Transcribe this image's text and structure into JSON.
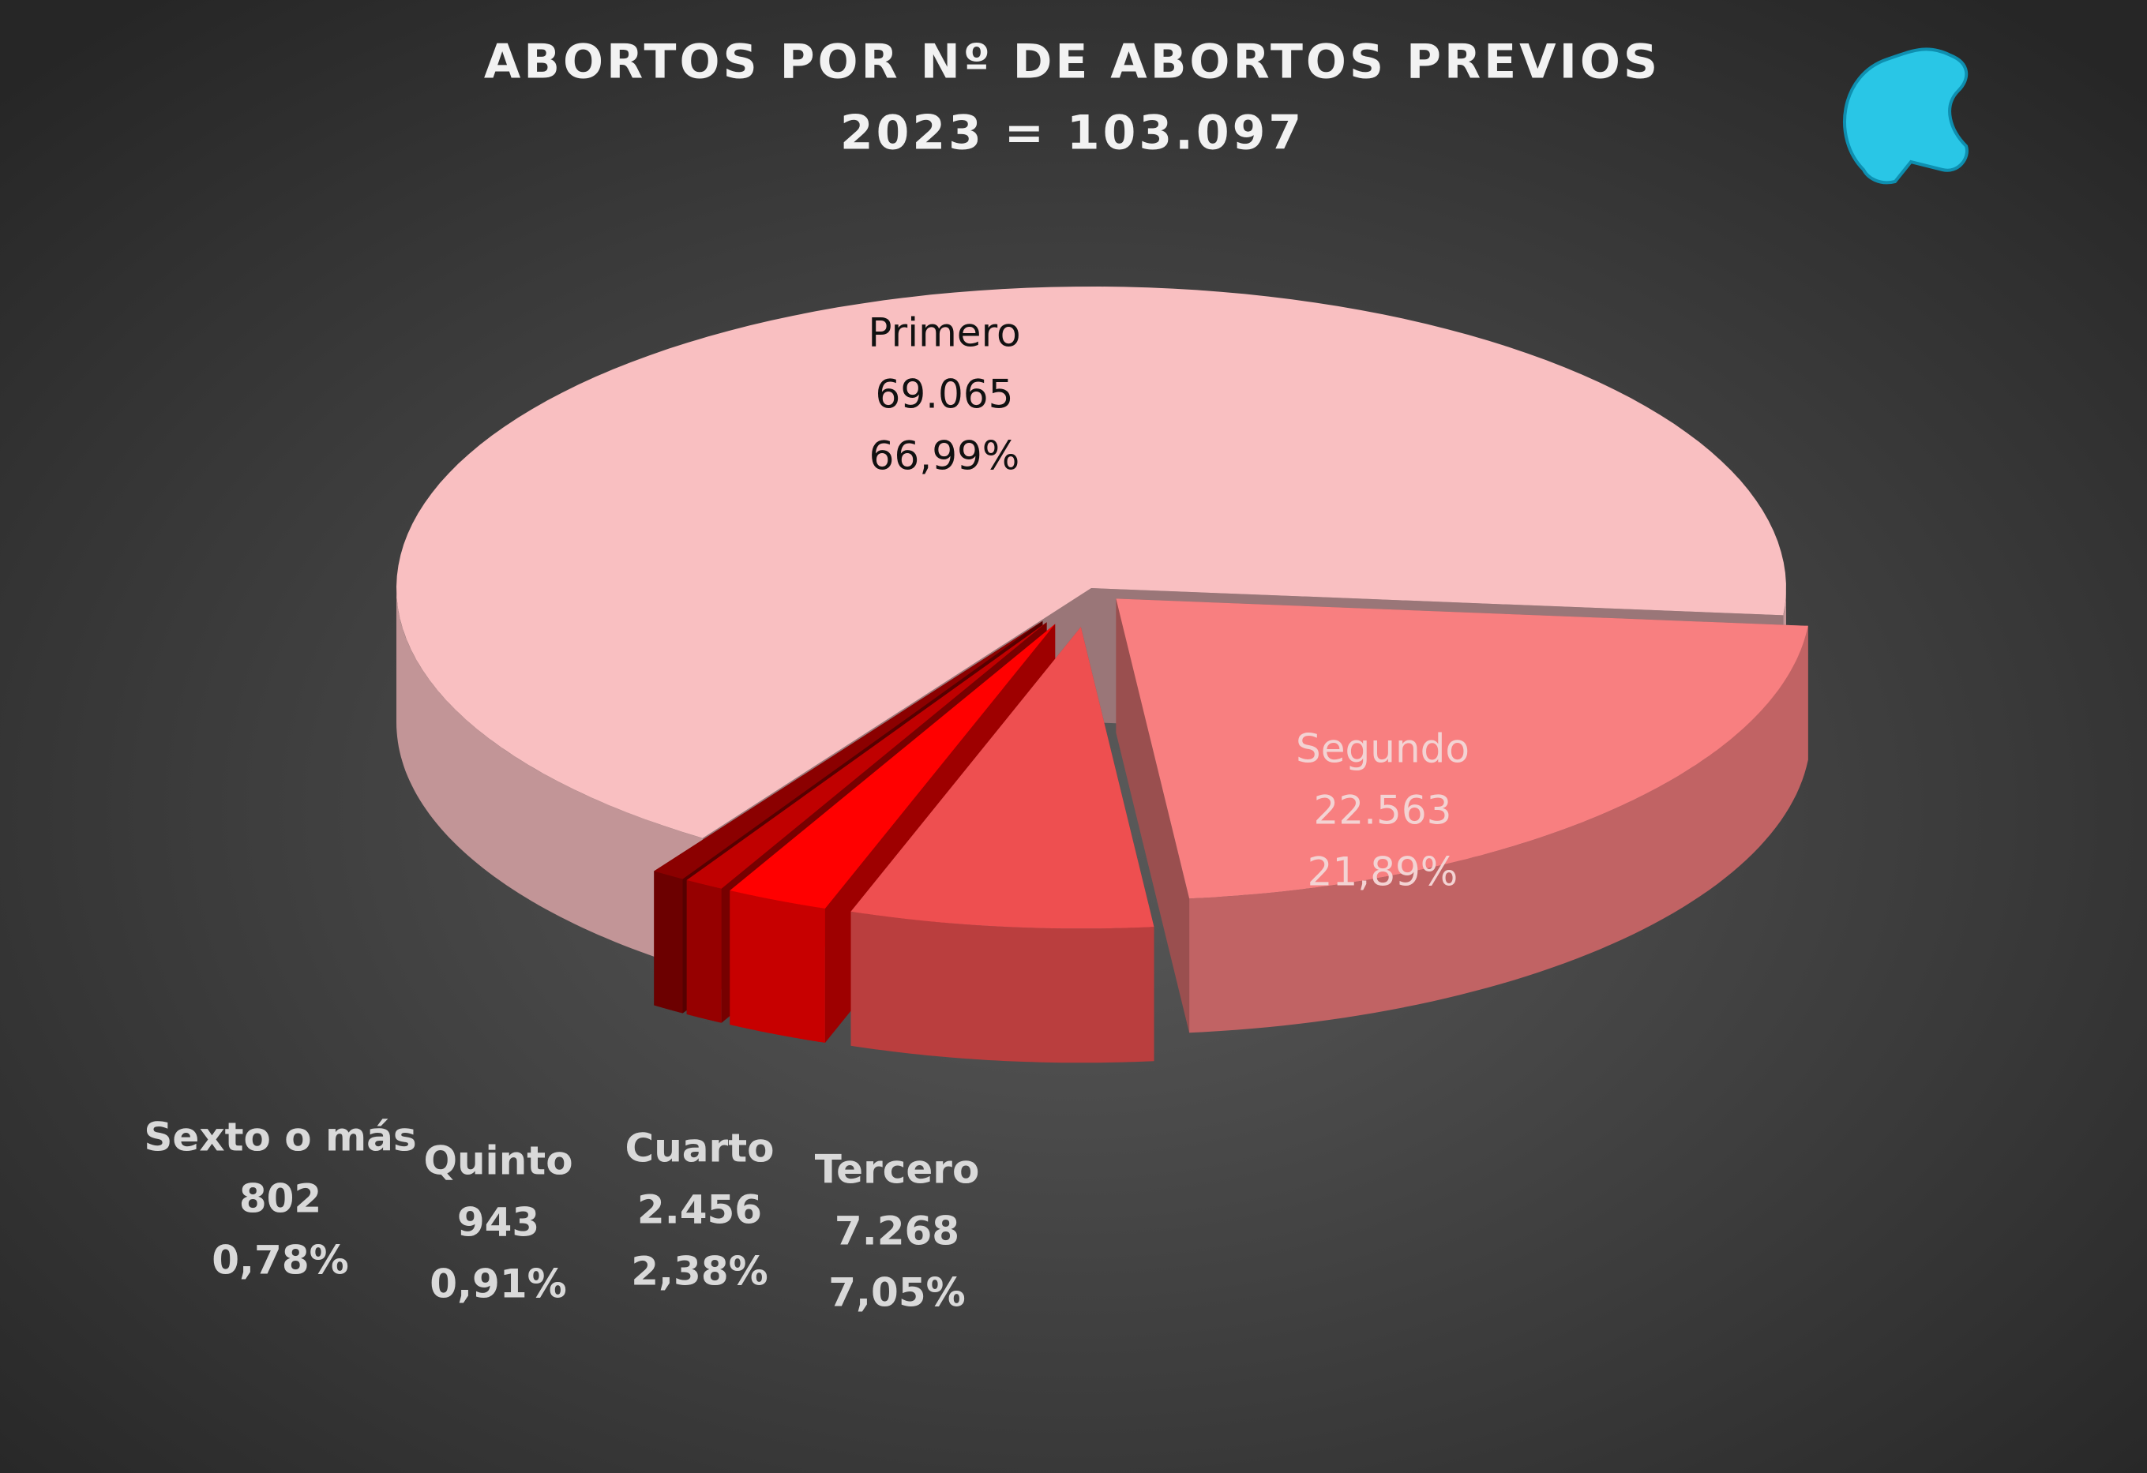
{
  "chart_data": {
    "type": "pie3d",
    "title": "ABORTOS POR Nº DE ABORTOS PREVIOS",
    "subtitle": "2023 = 103.097",
    "categories": [
      "Primero",
      "Segundo",
      "Tercero",
      "Cuarto",
      "Quinto",
      "Sexto o más"
    ],
    "values": [
      69065,
      22563,
      7268,
      2456,
      943,
      802
    ],
    "value_labels": [
      "69.065",
      "22.563",
      "7.268",
      "2.456",
      "943",
      "802"
    ],
    "percents": [
      66.99,
      21.89,
      7.05,
      2.38,
      0.91,
      0.78
    ],
    "percent_labels": [
      "66,99%",
      "21,89%",
      "7,05%",
      "2,38%",
      "0,91%",
      "0,78%"
    ],
    "colors": [
      "#f9bfc1",
      "#f87f80",
      "#ee4f50",
      "#ff0000",
      "#c00000",
      "#8b0000"
    ]
  }
}
